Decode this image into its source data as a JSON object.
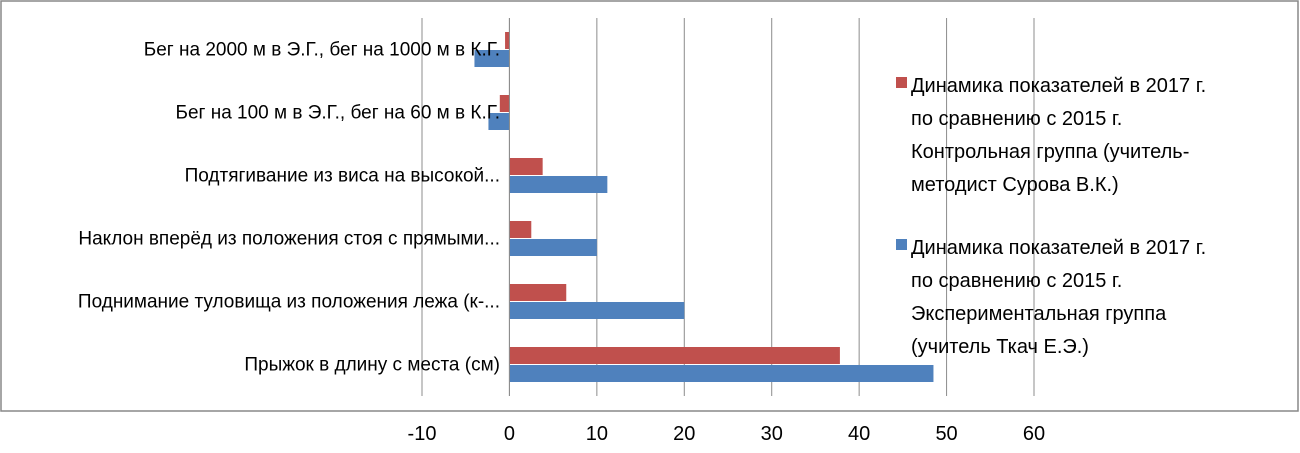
{
  "chart_data": {
    "type": "bar",
    "orientation": "horizontal",
    "categories": [
      "Прыжок в длину с места (см)",
      "Поднимание туловища из положения лежа (к-...",
      "Наклон вперёд из положения стоя с прямыми...",
      "Подтягивание из виса на высокой...",
      "Бег на 100 м в Э.Г., бег на 60 м в К.Г.",
      "Бег на 2000 м в Э.Г., бег на 1000 м в К.Г."
    ],
    "series": [
      {
        "name": "Динамика показателей в 2017 г. по сравнению с 2015 г. Экспериментальная группа (учитель Ткач Е.Э.)",
        "color": "#4F81BD",
        "values": [
          48.5,
          20,
          10,
          11.2,
          -2.4,
          -4
        ]
      },
      {
        "name": "Динамика показателей в 2017 г. по сравнению с 2015 г. Контрольная группа (учитель-методист Сурова В.К.)",
        "color": "#C0504D",
        "values": [
          37.8,
          6.5,
          2.5,
          3.8,
          -1.1,
          -0.5
        ]
      }
    ],
    "xlim": [
      -10,
      60
    ],
    "xticks": [
      "-10",
      "0",
      "10",
      "20",
      "30",
      "40",
      "50",
      "60"
    ],
    "grid": true,
    "legend_position": "right",
    "legend": [
      {
        "color": "#C0504D",
        "lines": [
          "Динамика показателей в 2017 г.",
          "по сравнению с 2015 г.",
          "Контрольная группа (учитель-",
          "методист Сурова В.К.)"
        ]
      },
      {
        "color": "#4F81BD",
        "lines": [
          "Динамика показателей в 2017 г.",
          "по сравнению с 2015 г.",
          "Экспериментальная группа",
          "(учитель Ткач Е.Э.)"
        ]
      }
    ]
  }
}
